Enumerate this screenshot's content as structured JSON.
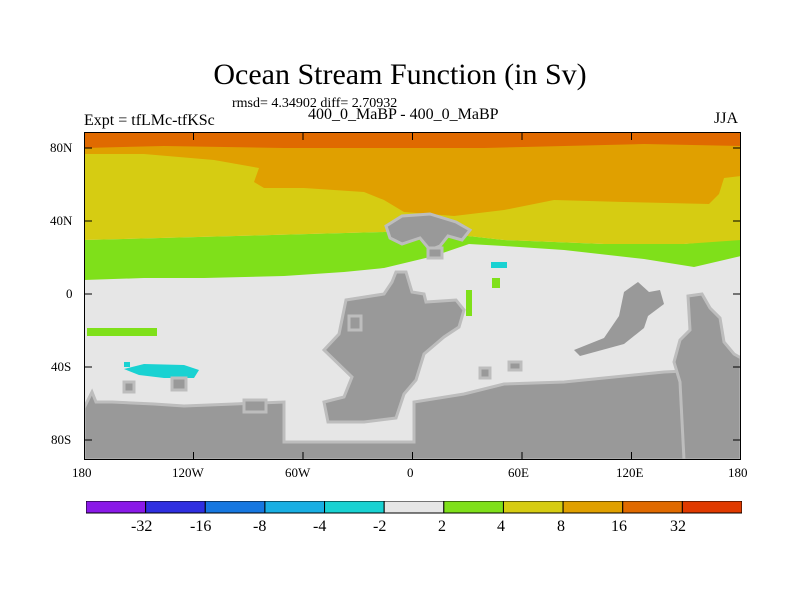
{
  "title": "Ocean Stream Function (in Sv)",
  "subtitle": "rmsd= 4.34902 diff= 2.70932",
  "experiment_label": "Expt = tfLMc-tfKSc",
  "difference_label": "400_0_MaBP - 400_0_MaBP",
  "season_label": "JJA",
  "axes": {
    "y_labels": [
      "80N",
      "40N",
      "0",
      "40S",
      "80S"
    ],
    "x_labels": [
      "180",
      "120W",
      "60W",
      "0",
      "60E",
      "120E",
      "180"
    ]
  },
  "colorbar": {
    "labels": [
      "-32",
      "-16",
      "-8",
      "-4",
      "-2",
      "2",
      "4",
      "8",
      "16",
      "32"
    ],
    "colors": [
      "#8a19e8",
      "#2f2fe0",
      "#1677e0",
      "#19afe3",
      "#19d2d2",
      "#e6e6e6",
      "#7fe01a",
      "#d6cc12",
      "#e0a000",
      "#e06a00",
      "#e03a00"
    ]
  },
  "map_colors": {
    "land": "#999999",
    "coast": "#bdbdbd",
    "near_zero": "#e6e6e6",
    "pos_2_4": "#7fe01a",
    "pos_4_8": "#d6cc12",
    "pos_8_16": "#e0a000",
    "pos_16_32": "#e06a00",
    "neg_2_4": "#19d2d2"
  }
}
